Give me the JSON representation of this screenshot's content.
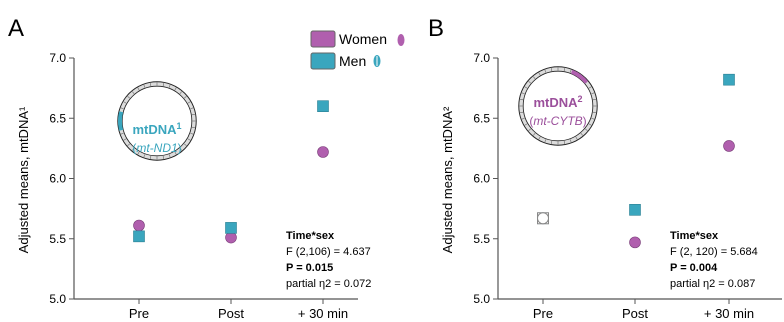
{
  "legend": {
    "entries": [
      {
        "label": "Women",
        "color": "#b05fae"
      },
      {
        "label": "Men",
        "color": "#3aa6be"
      }
    ]
  },
  "colors": {
    "women": "#b05fae",
    "men": "#3aa6be",
    "axis": "#555555",
    "ring_fill": "#dcdcdc",
    "mtdna_a_text": "#3aa6be",
    "mtdna_b_text": "#9b4f9b"
  },
  "chart_data": [
    {
      "type": "scatter",
      "panel_label": "A",
      "ylabel": "Adjusted means, mtDNA¹",
      "ylim": [
        5.0,
        7.0
      ],
      "yticks": [
        "5.0",
        "5.5",
        "6.0",
        "6.5",
        "7.0"
      ],
      "categories": [
        "Pre",
        "Post",
        "+ 30 min"
      ],
      "series": [
        {
          "name": "Women",
          "marker": "circle",
          "values": [
            5.61,
            5.51,
            6.22
          ]
        },
        {
          "name": "Men",
          "marker": "square",
          "values": [
            5.52,
            5.59,
            6.6
          ]
        }
      ],
      "overlay": {
        "title": "mtDNA",
        "title_sup": "1",
        "gene": "mt-ND1",
        "gene_prefix": "(",
        "gene_suffix": ")",
        "highlight": "men"
      },
      "stats": {
        "title": "Time*sex",
        "f": "F (2,106) = 4.637",
        "p": "P = 0.015",
        "eta": "partial η2 = 0.072"
      }
    },
    {
      "type": "scatter",
      "panel_label": "B",
      "ylabel": "Adjusted means, mtDNA²",
      "ylim": [
        5.0,
        7.0
      ],
      "yticks": [
        "5.0",
        "5.5",
        "6.0",
        "6.5",
        "7.0"
      ],
      "categories": [
        "Pre",
        "Post",
        "+ 30 min"
      ],
      "series": [
        {
          "name": "Women",
          "marker": "circle",
          "values": [
            5.67,
            5.47,
            6.27
          ]
        },
        {
          "name": "Men",
          "marker": "square",
          "values": [
            5.67,
            5.74,
            6.82
          ]
        }
      ],
      "overlay": {
        "title": "mtDNA",
        "title_sup": "2",
        "gene": "mt-CYTB",
        "gene_prefix": "(",
        "gene_suffix": ")",
        "highlight": "women"
      },
      "stats": {
        "title": "Time*sex",
        "f": "F (2, 120) = 5.684",
        "p": "P = 0.004",
        "eta": "partial η2 = 0.087"
      }
    }
  ]
}
